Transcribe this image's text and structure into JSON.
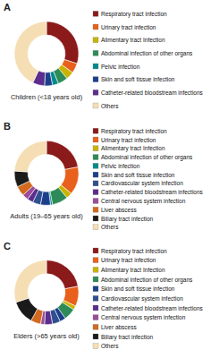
{
  "chart_data": [
    {
      "type": "pie",
      "title": "Children (<18 years old)",
      "annotations": [
        "A"
      ],
      "legend": "right",
      "categories": [
        "Respiratory tract infection",
        "Urinary tract infection",
        "Alimentary tract Infection",
        "Abdominal infection of other organs",
        "Pelvic infection",
        "Skin and soft tissue infection",
        "Catheter-related bloodstream infections",
        "Others"
      ],
      "values": [
        30,
        5,
        4,
        5,
        3,
        4,
        6,
        43
      ],
      "colors": [
        "#8B1A1A",
        "#E8601C",
        "#C8B400",
        "#2E8B57",
        "#008B8B",
        "#1C3F8C",
        "#5B2D8E",
        "#F5DEB3"
      ]
    },
    {
      "type": "pie",
      "title": "Adults (19–65 years old)",
      "annotations": [
        "B"
      ],
      "legend": "right",
      "categories": [
        "Respiratory tract infection",
        "Urinary tract infection",
        "Alimentary tract Infection",
        "Abdominal infection of other organs",
        "Pelvic infection",
        "Skin and soft tissue infection",
        "Cardiovascular system infection",
        "Catheter-related bloodstream infections",
        "Central nervous system infection",
        "Liver abscess",
        "Biliary tract infection",
        "Others"
      ],
      "values": [
        22,
        14,
        3,
        8,
        1,
        5,
        4,
        3,
        3,
        5,
        8,
        24
      ],
      "colors": [
        "#8B1A1A",
        "#E8601C",
        "#C8B400",
        "#2E8B57",
        "#008B8B",
        "#1C3F8C",
        "#2F4F8F",
        "#5B2D8E",
        "#9B4D9B",
        "#D2691E",
        "#1A1A1A",
        "#F5DEB3"
      ]
    },
    {
      "type": "pie",
      "title": "Elders (>65 years old)",
      "annotations": [
        "C"
      ],
      "legend": "right",
      "categories": [
        "Respiratory tract infection",
        "Urinary tract infection",
        "Alimentary tract Infection",
        "Abdominal infection of other organs",
        "Skin and soft tissue infection",
        "Cardiovascular system infection",
        "Catheter-related bloodstream infections",
        "Central nervous system infection",
        "Liver abscess",
        "Biliary tract infection",
        "Others"
      ],
      "values": [
        22,
        10,
        2,
        6,
        3,
        4,
        4,
        2,
        5,
        12,
        30
      ],
      "colors": [
        "#8B1A1A",
        "#E8601C",
        "#C8B400",
        "#2E8B57",
        "#1C3F8C",
        "#2F4F8F",
        "#5B2D8E",
        "#9B4D9B",
        "#D2691E",
        "#1A1A1A",
        "#F5DEB3"
      ]
    }
  ]
}
